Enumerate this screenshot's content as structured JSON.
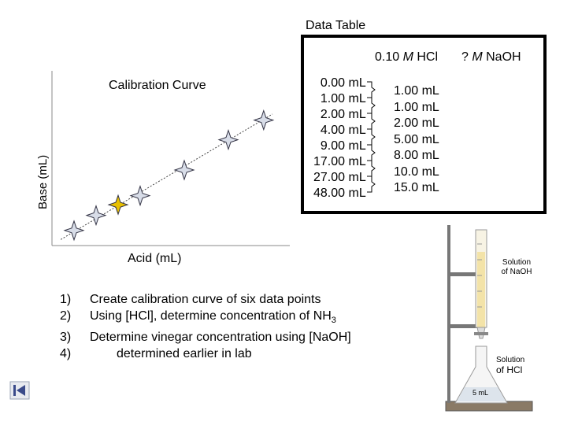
{
  "table": {
    "title": "Data Table",
    "col1_header_prefix": "0.10 ",
    "col1_header_m": "M",
    "col1_header_suffix": " HCl",
    "col2_header_prefix": "? ",
    "col2_header_m": "M",
    "col2_header_suffix": " NaOH",
    "hcl_values": [
      "0.00 mL",
      "1.00 mL",
      "2.00 mL",
      "4.00 mL",
      "9.00 mL",
      "17.00 mL",
      "27.00 mL",
      "48.00 mL"
    ],
    "naoh_values": [
      "1.00 mL",
      "1.00 mL",
      "2.00 mL",
      "5.00 mL",
      "8.00 mL",
      "10.0 mL",
      "15.0 mL"
    ]
  },
  "chart": {
    "title": "Calibration Curve",
    "xlabel": "Acid (mL)",
    "ylabel": "Base (mL)"
  },
  "chart_data": {
    "type": "scatter",
    "title": "Calibration Curve",
    "xlabel": "Acid (mL)",
    "ylabel": "Base (mL)",
    "points": [
      {
        "x": 1,
        "y": 1
      },
      {
        "x": 2,
        "y": 2
      },
      {
        "x": 3,
        "y": 2.7
      },
      {
        "x": 4,
        "y": 3.3
      },
      {
        "x": 6,
        "y": 5
      },
      {
        "x": 8,
        "y": 7
      },
      {
        "x": 9.6,
        "y": 8.3
      }
    ],
    "highlighted_point_index": 2,
    "highlight_color": "#e8c000",
    "trendline": "dotted",
    "grid": false
  },
  "steps": [
    {
      "num": "1)",
      "text": "Create calibration curve of six data points"
    },
    {
      "num": "2)",
      "text": "Using [HCl], determine concentration of NH",
      "sub": "3"
    },
    {
      "num": "3)",
      "text": "Determine vinegar concentration using [NaOH]"
    },
    {
      "num": "4)",
      "text": "determined earlier in lab"
    }
  ],
  "apparatus": {
    "burette_label_line1": "Solution",
    "burette_label_line2": "of NaOH",
    "flask_label_line1": "Solution",
    "flask_label_line2": "of HCl",
    "flask_volume": "5 mL"
  },
  "nav": {
    "icon": "skip-back-icon"
  }
}
